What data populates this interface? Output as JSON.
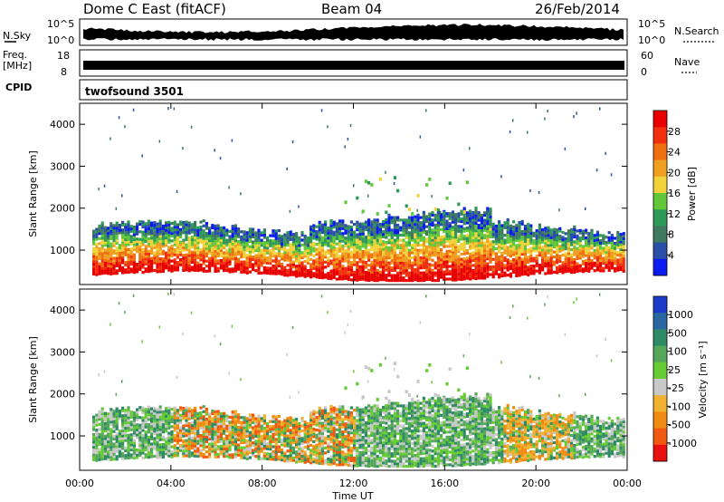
{
  "header": {
    "station": "Dome C East (fitACF)",
    "beam": "Beam 04",
    "date": "26/Feb/2014"
  },
  "nsky_panel": {
    "left_label": "N.Sky",
    "right_label": "N.Search",
    "left_ticks": [
      "10^5",
      "10^0"
    ],
    "right_ticks": [
      "10^5",
      "10^0"
    ]
  },
  "freq_panel": {
    "left_label_line1": "Freq.",
    "left_label_line2": "[MHz]",
    "right_label": "Nave",
    "left_ticks": [
      "18",
      "8"
    ],
    "right_ticks": [
      "60",
      "0"
    ]
  },
  "cpid_panel": {
    "label": "CPID",
    "value": "twofsound 3501"
  },
  "chart_data": [
    {
      "type": "heatmap",
      "name": "power",
      "ylabel": "Slant Range [km]",
      "ylim": [
        180,
        4500
      ],
      "yticks": [
        "1000",
        "2000",
        "3000",
        "4000"
      ],
      "ytick_values": [
        1000,
        2000,
        3000,
        4000
      ],
      "colorbar": {
        "label": "Power [dB]",
        "ticks": [
          "4",
          "8",
          "12",
          "16",
          "20",
          "24",
          "28"
        ],
        "colors": [
          "#0b1cf0",
          "#2a4fa8",
          "#3f7a5e",
          "#2f9a58",
          "#62c83a",
          "#f2d23a",
          "#f0a020",
          "#f07010",
          "#f23010",
          "#e80000"
        ]
      }
    },
    {
      "type": "heatmap",
      "name": "velocity",
      "ylabel": "Slant Range [km]",
      "ylim": [
        180,
        4500
      ],
      "yticks": [
        "1000",
        "2000",
        "3000",
        "4000"
      ],
      "ytick_values": [
        1000,
        2000,
        3000,
        4000
      ],
      "colorbar": {
        "label": "Velocity [m s⁻¹]",
        "ticks": [
          "1000",
          "500",
          "100",
          "25",
          "-25",
          "-100",
          "-500",
          "-1000"
        ],
        "colors": [
          "#1a3cc8",
          "#2a66a0",
          "#2f8a66",
          "#55a85a",
          "#66cc33",
          "#c8c8c8",
          "#f0b030",
          "#f08a10",
          "#f05a10",
          "#e81010"
        ]
      }
    }
  ],
  "xaxis": {
    "label": "Time UT",
    "ticks": [
      "00:00",
      "04:00",
      "08:00",
      "12:00",
      "16:00",
      "20:00",
      "00:00"
    ],
    "tick_hours": [
      0,
      4,
      8,
      12,
      16,
      20,
      24
    ]
  }
}
